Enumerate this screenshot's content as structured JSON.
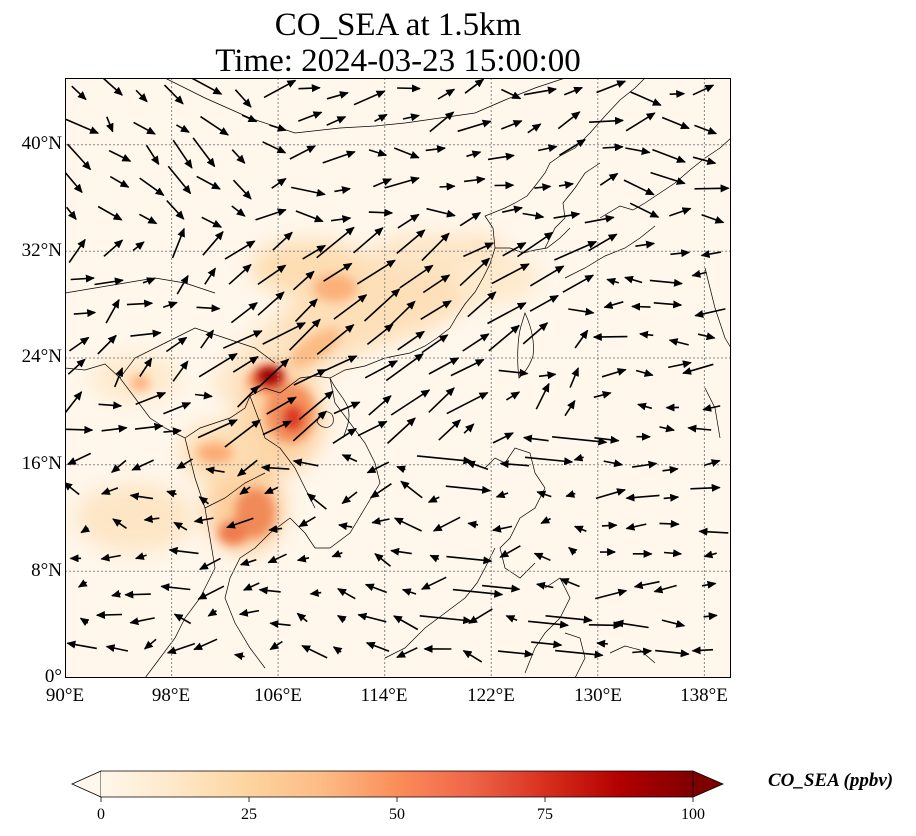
{
  "title": {
    "line1": "CO_SEA at 1.5km",
    "line2": "Time: 2024-03-23 15:00:00"
  },
  "map": {
    "extent": {
      "lon": [
        90,
        140
      ],
      "lat": [
        0,
        45
      ]
    },
    "lon_ticks": [
      "90°E",
      "98°E",
      "106°E",
      "114°E",
      "122°E",
      "130°E",
      "138°E"
    ],
    "lat_ticks": [
      "0°",
      "8°N",
      "16°N",
      "24°N",
      "32°N",
      "40°N"
    ],
    "gridlines": true,
    "field": "CO_SEA",
    "layers": [
      "concentration-field",
      "coastlines",
      "gridlines",
      "wind-vectors"
    ]
  },
  "colorbar": {
    "label": "CO_SEA (ppbv)",
    "min": 0,
    "max": 100,
    "ticks": [
      "0",
      "25",
      "50",
      "75",
      "100"
    ],
    "colormap": "OrRd",
    "extend": "both",
    "colors": [
      "#fff7ec",
      "#fee8c8",
      "#fdd49e",
      "#fdbb84",
      "#fc8d59",
      "#ef6548",
      "#d7301f",
      "#b30000",
      "#7f0000"
    ]
  }
}
